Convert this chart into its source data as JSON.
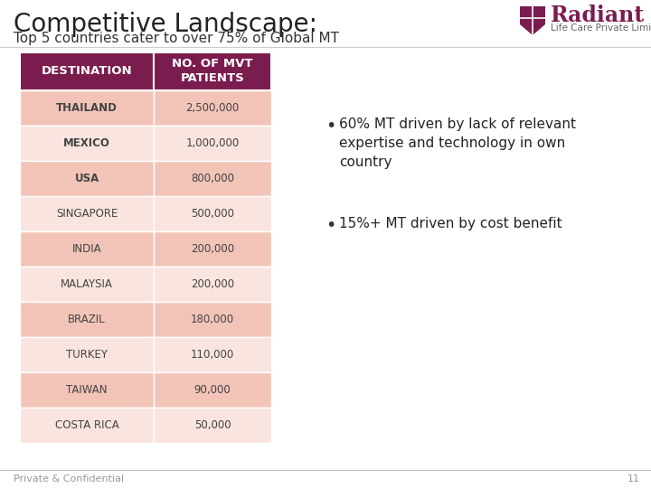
{
  "title": "Competitive Landscape:",
  "subtitle": "Top 5 countries cater to over 75% of Global MT",
  "col1_header": "DESTINATION",
  "col2_header": "NO. OF MVT\nPATIENTS",
  "rows": [
    [
      "THAILAND",
      "2,500,000"
    ],
    [
      "MEXICO",
      "1,000,000"
    ],
    [
      "USA",
      "800,000"
    ],
    [
      "SINGAPORE",
      "500,000"
    ],
    [
      "INDIA",
      "200,000"
    ],
    [
      "MALAYSIA",
      "200,000"
    ],
    [
      "BRAZIL",
      "180,000"
    ],
    [
      "TURKEY",
      "110,000"
    ],
    [
      "TAIWAN",
      "90,000"
    ],
    [
      "COSTA RICA",
      "50,000"
    ]
  ],
  "header_bg": "#7B1C4E",
  "header_text_color": "#FFFFFF",
  "row_colors": [
    "#F2C4B8",
    "#F9E4DF",
    "#F2C4B8",
    "#F9E4DF",
    "#F2C4B8",
    "#F9E4DF",
    "#F2C4B8",
    "#F9E4DF",
    "#F2C4B8",
    "#F9E4DF"
  ],
  "row_text_color": "#444444",
  "bullet1_line1": "60% MT driven by lack of relevant",
  "bullet1_line2": "expertise and technology in own",
  "bullet1_line3": "country",
  "bullet2": "15%+ MT driven by cost benefit",
  "footer_text": "Private & Confidential",
  "footer_page": "11",
  "bg_color": "#FFFFFF",
  "title_color": "#222222",
  "subtitle_color": "#333333",
  "title_fontsize": 20,
  "subtitle_fontsize": 11,
  "bullet_fontsize": 11,
  "footer_color": "#999999",
  "header_bg_dark": "#7B1C4E",
  "logo_text": "Radiant",
  "logo_sub": "Life Care Private Limited",
  "logo_color": "#7B1C4E"
}
